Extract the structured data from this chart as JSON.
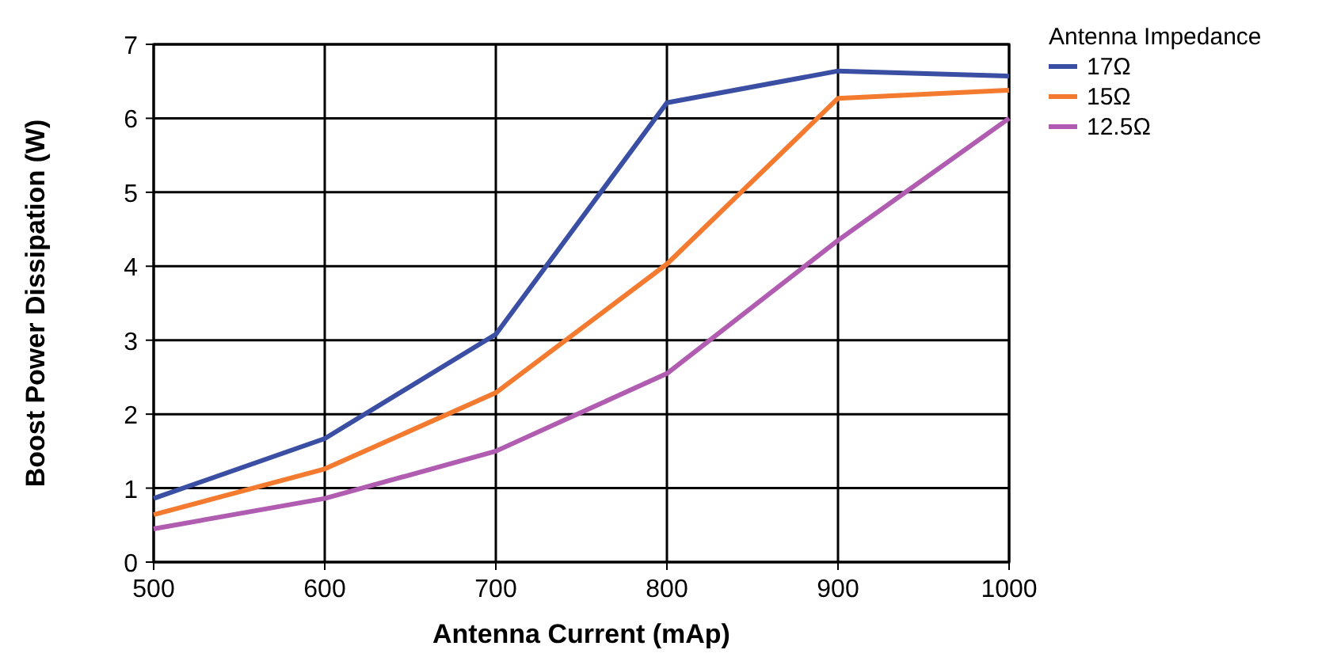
{
  "chart_data": {
    "type": "line",
    "xlabel": "Antenna Current (mAp)",
    "ylabel": "Boost Power Dissipation (W)",
    "legend_title": "Antenna Impedance",
    "x": [
      500,
      600,
      700,
      800,
      900,
      1000
    ],
    "series": [
      {
        "name": "17Ω",
        "color": "#3a4fa3",
        "values": [
          0.86,
          1.67,
          3.08,
          6.21,
          6.64,
          6.57
        ]
      },
      {
        "name": "15Ω",
        "color": "#f47a30",
        "values": [
          0.64,
          1.26,
          2.29,
          4.03,
          6.27,
          6.38
        ]
      },
      {
        "name": "12.5Ω",
        "color": "#b05cb0",
        "values": [
          0.45,
          0.86,
          1.5,
          2.55,
          4.35,
          6.0
        ]
      }
    ],
    "xlim": [
      500,
      1000
    ],
    "xticks": [
      500,
      600,
      700,
      800,
      900,
      1000
    ],
    "ylim": [
      0,
      7
    ],
    "yticks": [
      0,
      1,
      2,
      3,
      4,
      5,
      6,
      7
    ],
    "grid": true,
    "legend": "right",
    "marker": "none",
    "line_style": "solid"
  }
}
